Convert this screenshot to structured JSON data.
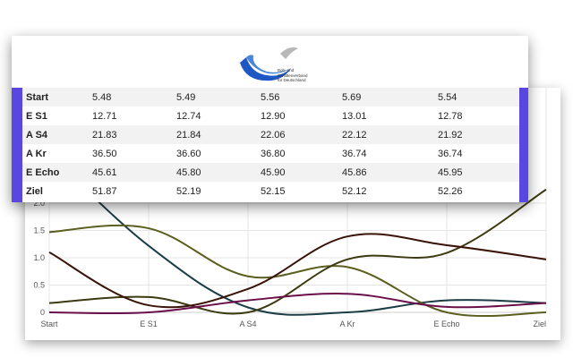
{
  "logo": {
    "line1": "Bob- und",
    "line2": "Schlittenverband",
    "line3": "für Deutschland"
  },
  "table": {
    "rows": [
      {
        "label": "Start",
        "values": [
          "5.48",
          "5.49",
          "5.56",
          "5.69",
          "5.54"
        ]
      },
      {
        "label": "E S1",
        "values": [
          "12.71",
          "12.74",
          "12.90",
          "13.01",
          "12.78"
        ]
      },
      {
        "label": "A S4",
        "values": [
          "21.83",
          "21.84",
          "22.06",
          "22.12",
          "21.92"
        ]
      },
      {
        "label": "A Kr",
        "values": [
          "36.50",
          "36.60",
          "36.80",
          "36.74",
          "36.74"
        ]
      },
      {
        "label": "E Echo",
        "values": [
          "45.61",
          "45.80",
          "45.90",
          "45.86",
          "45.95"
        ]
      },
      {
        "label": "Ziel",
        "values": [
          "51.87",
          "52.19",
          "52.15",
          "52.12",
          "52.26"
        ]
      }
    ]
  },
  "colors": {
    "accent": "#5a46e0"
  },
  "chart_data": {
    "type": "line",
    "categories": [
      "Start",
      "E S1",
      "A S4",
      "A Kr",
      "E Echo",
      "Ziel"
    ],
    "ylim": [
      0,
      2.0
    ],
    "yticks": [
      "0",
      "0.5",
      "1.0",
      "1.5",
      "2.0"
    ],
    "grid": true,
    "series": [
      {
        "color": "#1c3c46",
        "values": [
          2.9,
          1.22,
          0.09,
          0.0,
          0.22,
          0.17
        ]
      },
      {
        "color": "#5b5e1e",
        "values": [
          1.47,
          1.54,
          0.66,
          0.83,
          0.0,
          0.0
        ]
      },
      {
        "color": "#3c3a10",
        "values": [
          0.17,
          0.28,
          0.0,
          0.97,
          1.09,
          2.25
        ]
      },
      {
        "color": "#3a1408",
        "values": [
          1.1,
          0.13,
          0.43,
          1.39,
          1.23,
          0.97
        ]
      },
      {
        "color": "#6a0f4a",
        "values": [
          0.0,
          0.0,
          0.22,
          0.34,
          0.1,
          0.17
        ]
      }
    ]
  }
}
